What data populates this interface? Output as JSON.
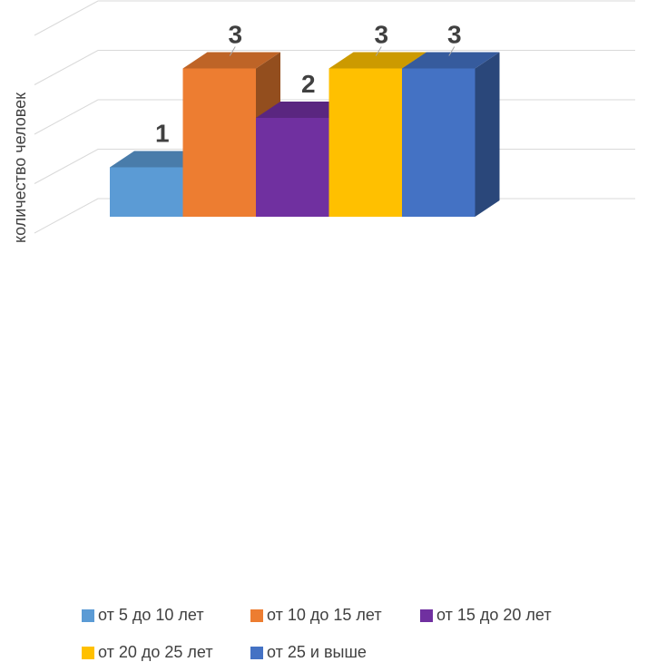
{
  "chart_data": {
    "type": "bar",
    "style": "3d-clustered",
    "ylabel": "количество человек",
    "ylim": [
      0,
      4
    ],
    "grid": true,
    "legend_position": "bottom",
    "categories": [
      ""
    ],
    "series": [
      {
        "name": "от 5 до 10 лет",
        "values": [
          1
        ],
        "color": "#5B9BD5",
        "data_label": "1"
      },
      {
        "name": "от 10 до 15 лет",
        "values": [
          3
        ],
        "color": "#ED7D31",
        "data_label": "3"
      },
      {
        "name": "от 15 до 20 лет",
        "values": [
          2
        ],
        "color": "#7030A0",
        "data_label": "2"
      },
      {
        "name": "от 20 до 25 лет",
        "values": [
          3
        ],
        "color": "#FFC000",
        "data_label": "3"
      },
      {
        "name": "от 25 и выше",
        "values": [
          3
        ],
        "color": "#4472C4",
        "data_label": "3"
      }
    ]
  }
}
